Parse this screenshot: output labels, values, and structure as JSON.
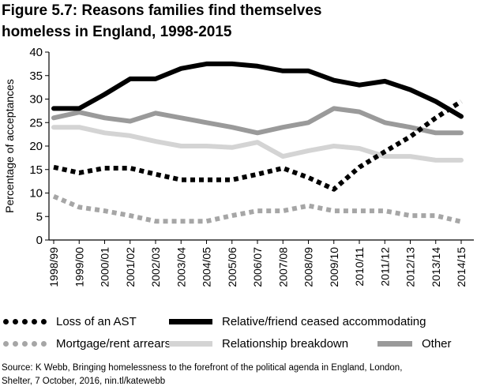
{
  "figure": {
    "title_line1": "Figure 5.7: Reasons families find themselves",
    "title_line2": "homeless in England, 1998-2015",
    "source_line1": "Source: K Webb, Bringing homelessness to the forefront of the political agenda in England, London,",
    "source_line2": "Shelter, 7 October, 2016, nin.tl/katewebb"
  },
  "chart_data": {
    "type": "line",
    "title": "Figure 5.7: Reasons families find themselves homeless in England, 1998-2015",
    "xlabel": "",
    "ylabel": "Percentage of acceptances",
    "ylim": [
      0,
      40
    ],
    "yticks": [
      "0",
      "5",
      "10",
      "15",
      "20",
      "25",
      "30",
      "35",
      "40"
    ],
    "categories": [
      "1998/99",
      "1999/00",
      "2000/01",
      "2001/02",
      "2002/03",
      "2003/04",
      "2004/05",
      "2005/06",
      "2006/07",
      "2007/08",
      "2008/09",
      "2009/10",
      "2010/11",
      "2011/12",
      "2012/13",
      "2013/14",
      "2014/15"
    ],
    "grid": false,
    "legend_position": "bottom",
    "series": [
      {
        "name": "Loss of an AST",
        "values": [
          15.5,
          14.3,
          15.3,
          15.3,
          14,
          12.8,
          12.8,
          12.8,
          14,
          15.3,
          13.3,
          10.8,
          15.5,
          18.8,
          22,
          26,
          29.5
        ],
        "color": "#000000",
        "style": "dotted"
      },
      {
        "name": "Relative/friend ceased accommodating",
        "values": [
          28,
          28,
          31,
          34.3,
          34.3,
          36.5,
          37.5,
          37.5,
          37,
          36,
          36,
          34,
          33,
          33.8,
          32,
          29.5,
          26.3
        ],
        "color": "#000000",
        "style": "solid"
      },
      {
        "name": "Mortgage/rent arrears",
        "values": [
          9.3,
          7,
          6.2,
          5.2,
          4,
          4,
          4,
          5.2,
          6.2,
          6.2,
          7.3,
          6.2,
          6.2,
          6.2,
          5.2,
          5.2,
          3.9
        ],
        "color": "#a6a6a6",
        "style": "dotted"
      },
      {
        "name": "Relationship breakdown",
        "values": [
          24,
          24,
          22.8,
          22.2,
          21,
          20,
          20,
          19.7,
          20.8,
          17.8,
          19,
          20,
          19.5,
          17.8,
          17.8,
          17,
          17
        ],
        "color": "#d4d4d4",
        "style": "solid"
      },
      {
        "name": "Other",
        "values": [
          26,
          27.2,
          26,
          25.3,
          27,
          26,
          25,
          24,
          22.8,
          24,
          25,
          28,
          27.3,
          25,
          24,
          22.8,
          22.8
        ],
        "color": "#9a9a9a",
        "style": "solid"
      }
    ]
  }
}
